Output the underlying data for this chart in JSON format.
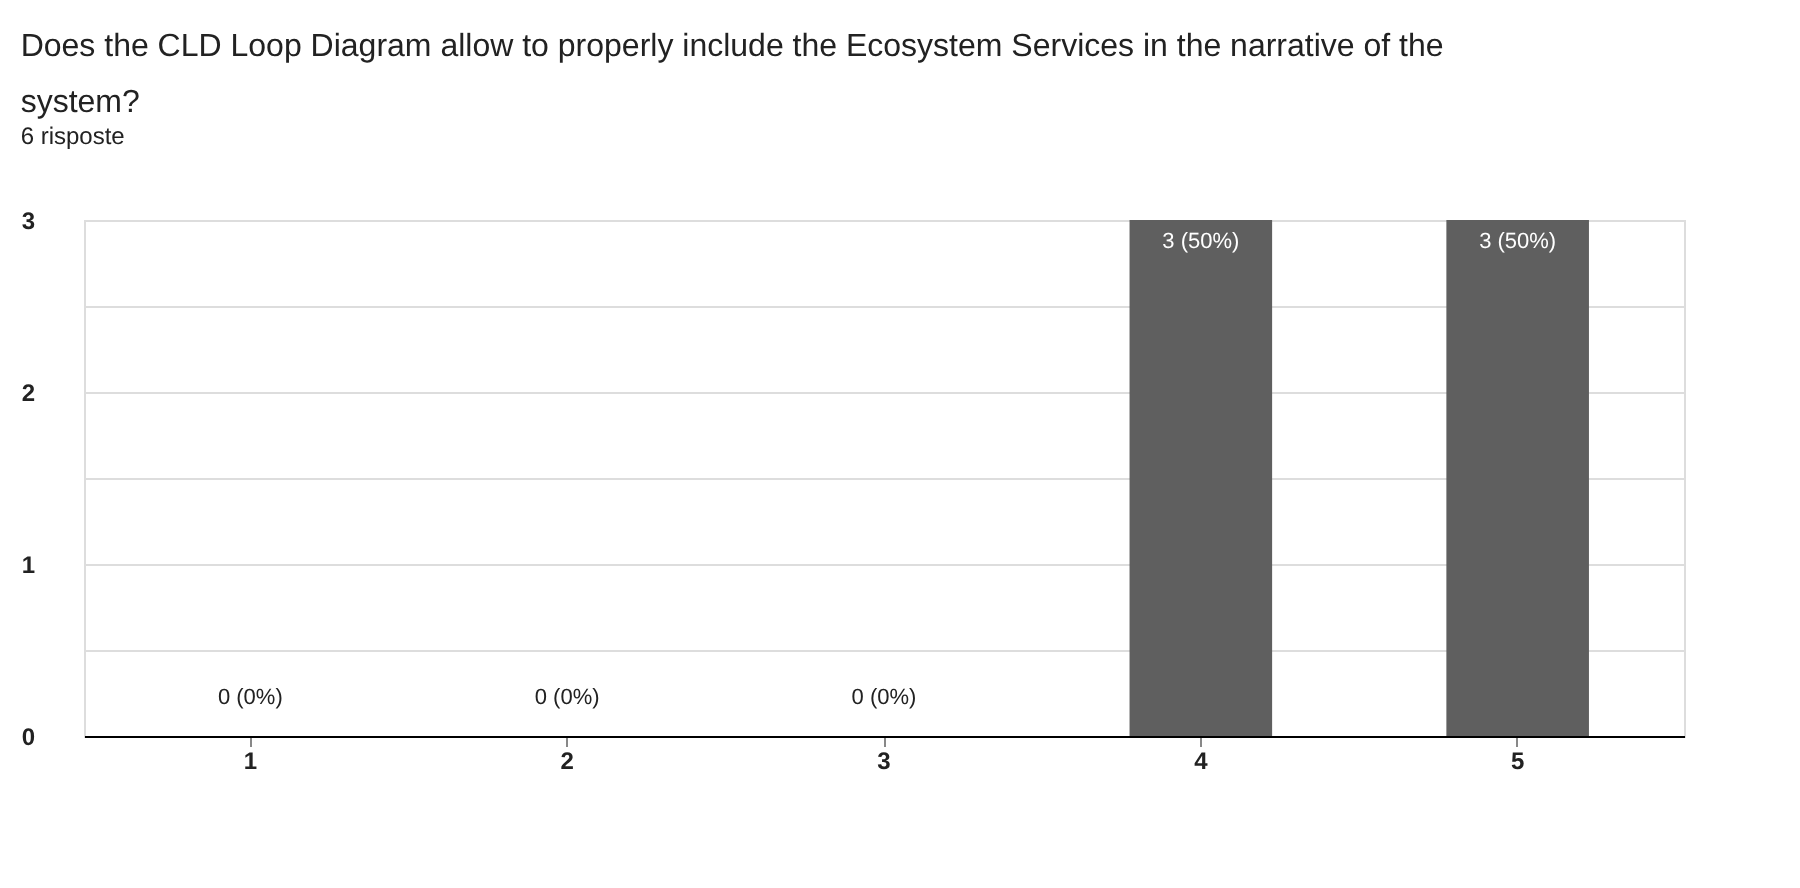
{
  "chart_data": {
    "type": "bar",
    "title": "Does the CLD Loop Diagram allow to properly include the Ecosystem Services  in the narrative of the system?",
    "subtitle": "6 risposte",
    "categories": [
      "1",
      "2",
      "3",
      "4",
      "5"
    ],
    "values": [
      0,
      0,
      0,
      3,
      3
    ],
    "value_labels": [
      "0 (0%)",
      "0 (0%)",
      "0 (0%)",
      "3 (50%)",
      "3 (50%)"
    ],
    "color": "#5f5f5f",
    "ylim": [
      0,
      3
    ],
    "yticks": [
      0,
      {
        "value": 0.5,
        "label": null
      },
      1,
      {
        "value": 1.5,
        "label": null
      },
      2,
      {
        "value": 2.5,
        "label": null
      },
      3
    ],
    "grid": "y"
  }
}
